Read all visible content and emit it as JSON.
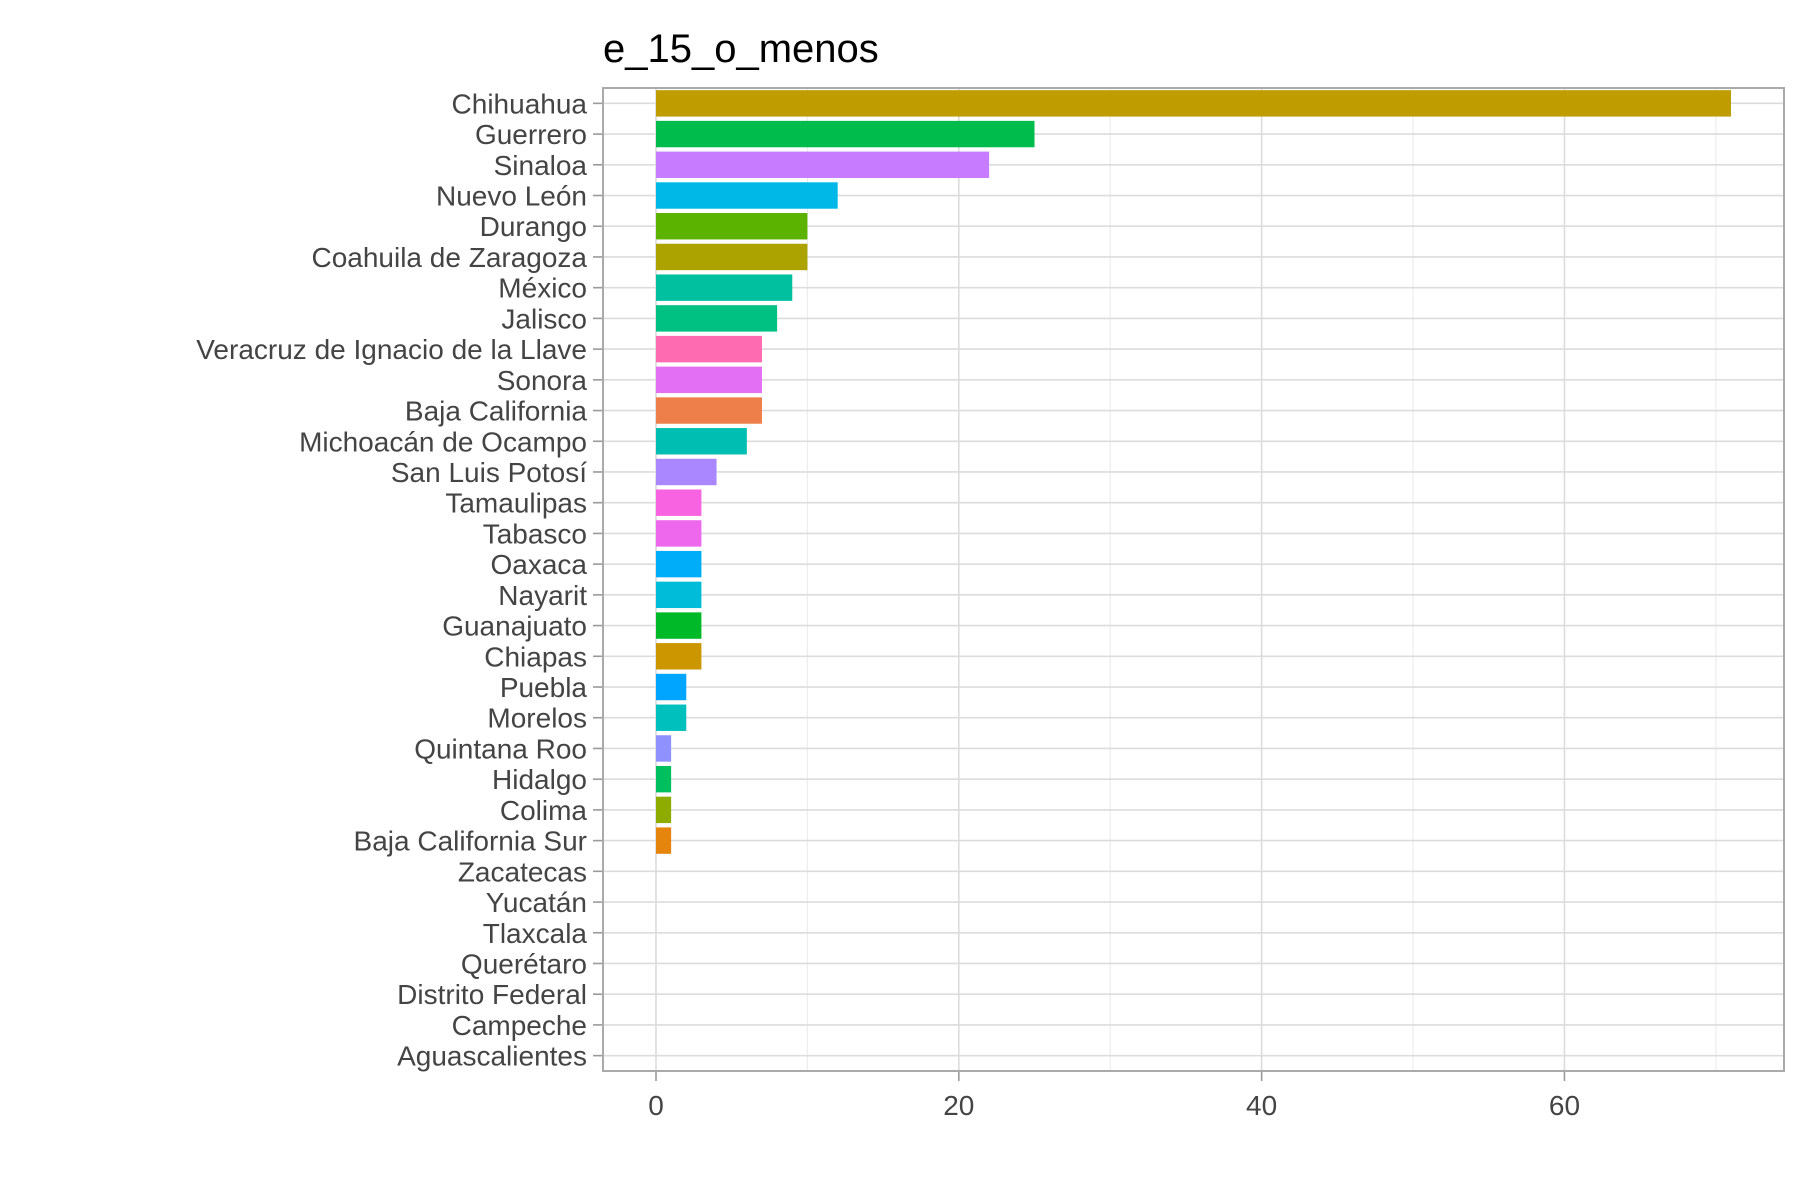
{
  "chart_data": {
    "type": "bar",
    "orientation": "horizontal",
    "title": "e_15_o_menos",
    "xlabel": "",
    "ylabel": "",
    "xlim": [
      -3.5,
      74.5
    ],
    "x_ticks": [
      0,
      20,
      40,
      60
    ],
    "grid": true,
    "legend": "none",
    "categories": [
      "Chihuahua",
      "Guerrero",
      "Sinaloa",
      "Nuevo León",
      "Durango",
      "Coahuila de Zaragoza",
      "México",
      "Jalisco",
      "Veracruz de Ignacio de la Llave",
      "Sonora",
      "Baja California",
      "Michoacán de Ocampo",
      "San Luis Potosí",
      "Tamaulipas",
      "Tabasco",
      "Oaxaca",
      "Nayarit",
      "Guanajuato",
      "Chiapas",
      "Puebla",
      "Morelos",
      "Quintana Roo",
      "Hidalgo",
      "Colima",
      "Baja California Sur",
      "Zacatecas",
      "Yucatán",
      "Tlaxcala",
      "Querétaro",
      "Distrito Federal",
      "Campeche",
      "Aguascalientes"
    ],
    "values": [
      71,
      25,
      22,
      12,
      10,
      10,
      9,
      8,
      7,
      7,
      7,
      6,
      4,
      3,
      3,
      3,
      3,
      3,
      3,
      2,
      2,
      1,
      1,
      1,
      1,
      0,
      0,
      0,
      0,
      0,
      0,
      0
    ],
    "colors": [
      "#BF9C00",
      "#00BC4C",
      "#C77CFF",
      "#00B8E7",
      "#5BB300",
      "#ACA300",
      "#00C0A0",
      "#00C181",
      "#FF6BB1",
      "#E36FF5",
      "#EF7F4A",
      "#00BFB2",
      "#AB87FF",
      "#F763E0",
      "#ED68ED",
      "#00ADF9",
      "#00BCD8",
      "#00B928",
      "#CC9600",
      "#00A5FF",
      "#00C0BE",
      "#8F91FF",
      "#00BF5F",
      "#8EAB00",
      "#E6850E",
      "#F8766D",
      "#FF61C9",
      "#7CAE00",
      "#00BA38",
      "#00B0F6",
      "#D89000",
      "#FF67A4"
    ]
  }
}
